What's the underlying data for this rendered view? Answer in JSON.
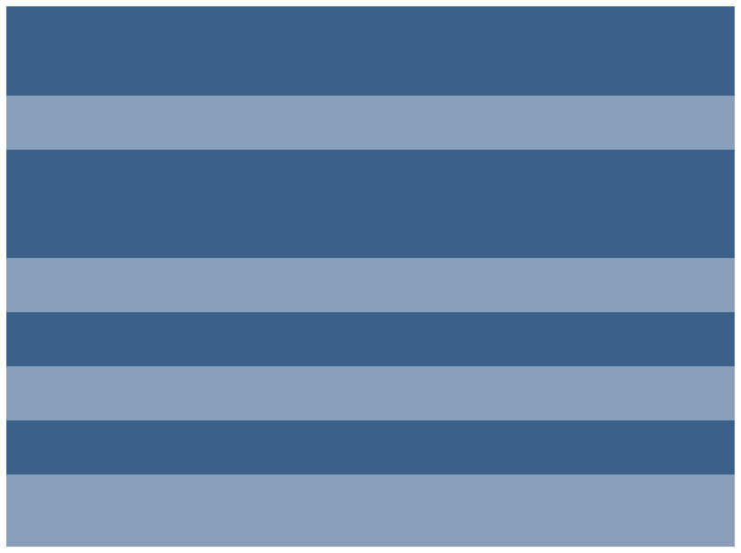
{
  "colors": {
    "dark_band": "#3b6089",
    "light_band": "#899eb9",
    "background": "#ffffff"
  }
}
